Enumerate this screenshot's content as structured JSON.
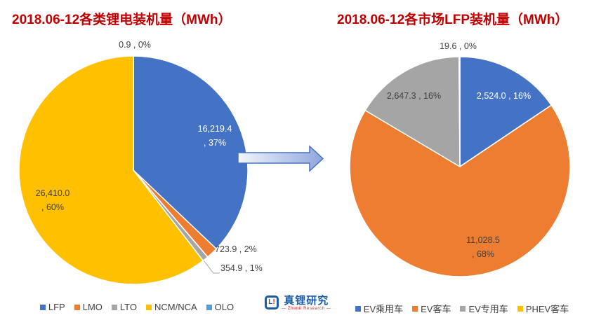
{
  "theme": {
    "title_color": "#C00000",
    "label_dark": "#404040",
    "leader_line": "#A6A6A6"
  },
  "chart_data": [
    {
      "type": "pie",
      "title": "2018.06-12各类锂电装机量（MWh）",
      "legend_position": "bottom",
      "slices": [
        {
          "name": "LFP",
          "value": 16219.4,
          "pct": "37%",
          "color": "#4472C4",
          "label": "16,219.4\n, 37%",
          "label_color": "#FFFFFF"
        },
        {
          "name": "LMO",
          "value": 723.9,
          "pct": "2%",
          "color": "#ED7D31",
          "label": "723.9 , 2%",
          "label_color": "#404040"
        },
        {
          "name": "LTO",
          "value": 354.9,
          "pct": "1%",
          "color": "#A5A5A5",
          "label": "354.9 , 1%",
          "label_color": "#404040"
        },
        {
          "name": "NCM/NCA",
          "value": 26410.0,
          "pct": "60%",
          "color": "#FFC000",
          "label": "26,410.0\n, 60%",
          "label_color": "#404040"
        },
        {
          "name": "OLO",
          "value": 0.9,
          "pct": "0%",
          "color": "#5B9BD5",
          "label": "0.9 , 0%",
          "label_color": "#404040"
        }
      ]
    },
    {
      "type": "pie",
      "title": "2018.06-12各市场LFP装机量（MWh）",
      "legend_position": "bottom",
      "slices": [
        {
          "name": "EV乘用车",
          "value": 2524.0,
          "pct": "16%",
          "color": "#4472C4",
          "label": "2,524.0 , 16%",
          "label_color": "#FFFFFF"
        },
        {
          "name": "EV客车",
          "value": 11028.5,
          "pct": "68%",
          "color": "#ED7D31",
          "label": "11,028.5\n, 68%",
          "label_color": "#404040"
        },
        {
          "name": "EV专用车",
          "value": 2647.3,
          "pct": "16%",
          "color": "#A5A5A5",
          "label": "2,647.3 , 16%",
          "label_color": "#404040"
        },
        {
          "name": "PHEV客车",
          "value": 19.6,
          "pct": "0%",
          "color": "#FFC000",
          "label": "19.6 , 0%",
          "label_color": "#404040"
        }
      ]
    }
  ],
  "arrow": {
    "border": "#4472C4",
    "fill_start": "#F2F5FC",
    "fill_end": "#8FA7DE"
  },
  "logo": {
    "mark_l": "L",
    "mark_ex": "!",
    "name": "真锂研究",
    "tagline": "— Zhenli Research —",
    "brand_blue": "#1A5DA6",
    "brand_red": "#E02020"
  }
}
